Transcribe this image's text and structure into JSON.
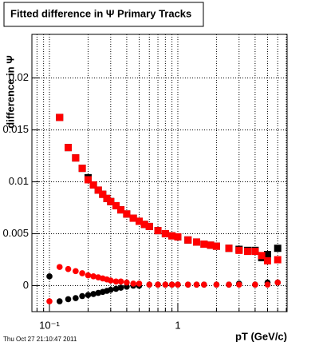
{
  "chart_data": {
    "type": "scatter",
    "title": "Fitted difference in Ψ   Primary Tracks",
    "y_label": "difference in Ψ",
    "x_label": "pT (GeV/c)",
    "timestamp": "Thu Oct 27 21:10:47 2011",
    "log_x": true,
    "grid": true,
    "xlim": [
      0.073,
      7.1
    ],
    "ylim": [
      -0.0025,
      0.0242
    ],
    "xticks": [
      {
        "value": 0.1,
        "label": "10⁻¹"
      },
      1
    ],
    "xminorticks": [
      0.08,
      0.09,
      0.2,
      0.3,
      0.4,
      0.5,
      0.6,
      0.7,
      0.8,
      0.9,
      2,
      3,
      4,
      5,
      6,
      7
    ],
    "yticks": [
      0,
      0.005,
      0.01,
      0.015,
      0.02
    ],
    "series": [
      {
        "color": "#000000",
        "marker": "square",
        "x": [
          0.12,
          0.14,
          0.16,
          0.18,
          0.2,
          0.22,
          0.24,
          0.26,
          0.28,
          0.3,
          0.33,
          0.36,
          0.4,
          0.45,
          0.5,
          0.55,
          0.6,
          0.7,
          0.8,
          0.9,
          1.0,
          1.2,
          1.4,
          1.6,
          1.8,
          2.0,
          2.5,
          3.0,
          3.5,
          4.0,
          4.5,
          5.0,
          6.0
        ],
        "values": [
          0.0162,
          0.0133,
          0.0123,
          0.0113,
          0.0104,
          0.0097,
          0.0092,
          0.0088,
          0.0084,
          0.0081,
          0.0077,
          0.0073,
          0.0069,
          0.0065,
          0.0062,
          0.0059,
          0.0057,
          0.0053,
          0.005,
          0.0048,
          0.0047,
          0.0044,
          0.0042,
          0.004,
          0.0039,
          0.0038,
          0.0036,
          0.0035,
          0.0034,
          0.0034,
          0.0027,
          0.003,
          0.0036
        ]
      },
      {
        "color": "#ff0000",
        "marker": "square",
        "x": [
          0.12,
          0.14,
          0.16,
          0.18,
          0.2,
          0.22,
          0.24,
          0.26,
          0.28,
          0.3,
          0.33,
          0.36,
          0.4,
          0.45,
          0.5,
          0.55,
          0.6,
          0.7,
          0.8,
          0.9,
          1.0,
          1.2,
          1.4,
          1.6,
          1.8,
          2.0,
          2.5,
          3.0,
          3.5,
          4.0,
          4.5,
          5.0,
          6.0
        ],
        "values": [
          0.0162,
          0.0133,
          0.0123,
          0.0113,
          0.0102,
          0.0097,
          0.0092,
          0.0088,
          0.0084,
          0.0081,
          0.0077,
          0.0073,
          0.0069,
          0.0065,
          0.0062,
          0.0059,
          0.0057,
          0.0053,
          0.005,
          0.0048,
          0.0047,
          0.0044,
          0.0042,
          0.004,
          0.0039,
          0.0038,
          0.0036,
          0.0034,
          0.0033,
          0.0033,
          0.0029,
          0.0024,
          0.0025
        ]
      },
      {
        "color": "#000000",
        "marker": "circle",
        "x": [
          0.1,
          0.12,
          0.14,
          0.16,
          0.18,
          0.2,
          0.22,
          0.24,
          0.26,
          0.28,
          0.3,
          0.33,
          0.36,
          0.4,
          0.45,
          0.5,
          0.6,
          0.7,
          0.8,
          0.9,
          1.0,
          1.2,
          1.4,
          1.6,
          2.0,
          2.5,
          3.0,
          4.0,
          5.0,
          6.0
        ],
        "values": [
          0.0009,
          -0.0015,
          -0.0013,
          -0.0012,
          -0.001,
          -0.0009,
          -0.0008,
          -0.0007,
          -0.0006,
          -0.0005,
          -0.0004,
          -0.0003,
          -0.0002,
          -0.0001,
          0,
          0,
          0.0001,
          0.0001,
          0.0001,
          0.0001,
          0.0001,
          0.0001,
          0.0001,
          0.0001,
          0.0001,
          0.0001,
          0.0002,
          0.0001,
          0.0003,
          0.0003
        ]
      },
      {
        "color": "#ff0000",
        "marker": "circle",
        "x": [
          0.1,
          0.12,
          0.14,
          0.16,
          0.18,
          0.2,
          0.22,
          0.24,
          0.26,
          0.28,
          0.3,
          0.33,
          0.36,
          0.4,
          0.45,
          0.5,
          0.6,
          0.7,
          0.8,
          0.9,
          1.0,
          1.2,
          1.4,
          1.6,
          2.0,
          2.5,
          3.0,
          4.0,
          5.0,
          6.0
        ],
        "values": [
          -0.0015,
          0.0018,
          0.0016,
          0.0014,
          0.0012,
          0.001,
          0.0009,
          0.0008,
          0.0007,
          0.0006,
          0.0005,
          0.0004,
          0.0004,
          0.0003,
          0.0002,
          0.0002,
          0.0001,
          0.0001,
          0.0001,
          0.0001,
          0.0001,
          0.0001,
          0.0001,
          0.0001,
          0.0001,
          0.0001,
          0.0001,
          0.0001,
          0.0001,
          0.0003
        ]
      }
    ]
  }
}
